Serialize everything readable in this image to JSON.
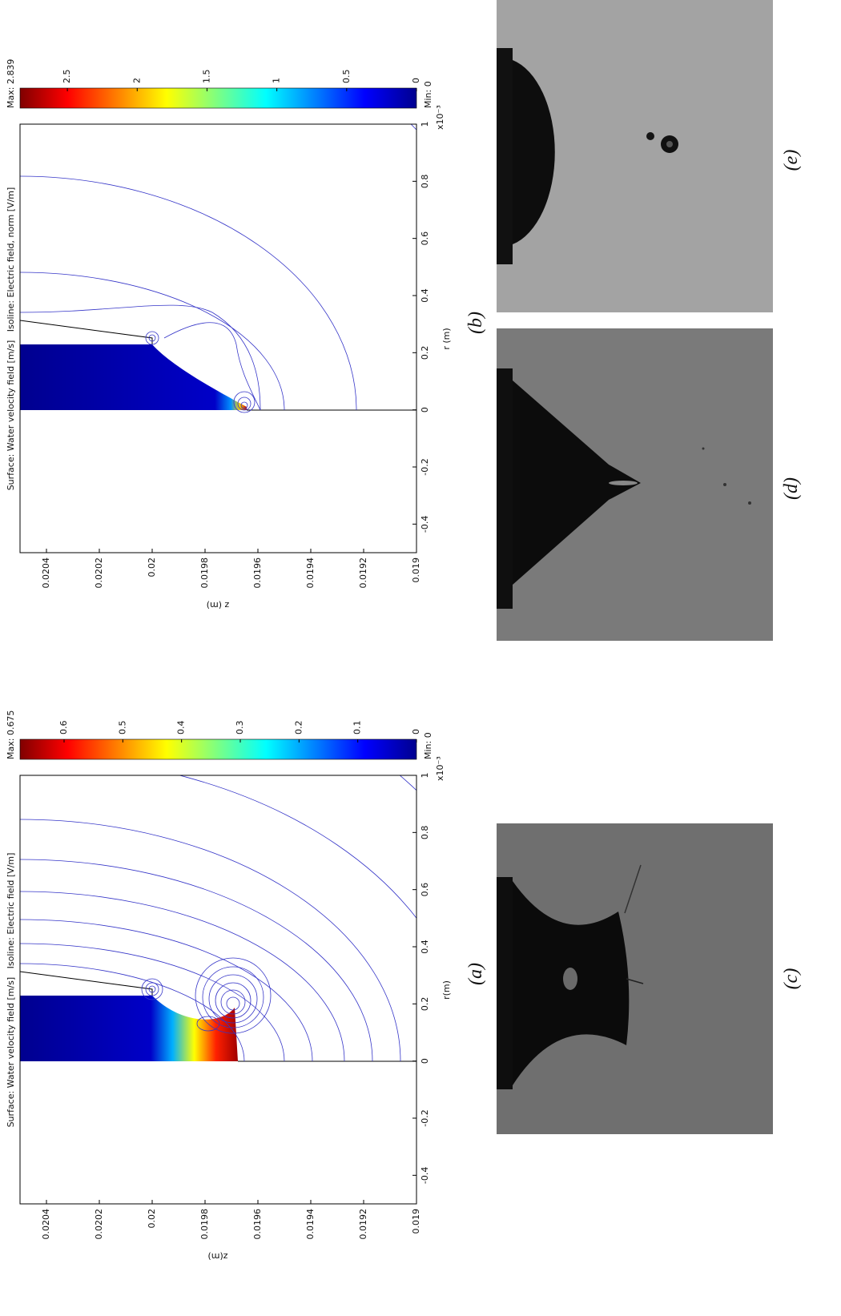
{
  "figure": {
    "plots": [
      {
        "label": "(a)",
        "title": "Surface: Water velocity field [m/s]   Isoline: Electric field [V/m]",
        "xlabel": "r(m)",
        "ylabel": "z(m)",
        "x_multiplier": "x10⁻³",
        "xlim": [
          -0.5,
          1
        ],
        "xticks": [
          -0.4,
          -0.2,
          0,
          0.2,
          0.4,
          0.6,
          0.8,
          1
        ],
        "ylim": [
          0.019,
          0.0205
        ],
        "yticks": [
          0.0204,
          0.0202,
          0.02,
          0.0198,
          0.0196,
          0.0194,
          0.0192,
          0.019
        ],
        "colorbar": {
          "max_label": "Max: 0.675",
          "min_label": "Min: 0",
          "clim": [
            0,
            0.675
          ],
          "ticks": [
            0.6,
            0.5,
            0.4,
            0.3,
            0.2,
            0.1,
            0
          ]
        }
      },
      {
        "label": "(b)",
        "title": "Surface: Water velocity field [m/s]   Isoline: Electric field, norm [V/m]",
        "xlabel": "r (m)",
        "ylabel": "z (m)",
        "x_multiplier": "x10⁻³",
        "xlim": [
          -0.5,
          1
        ],
        "xticks": [
          -0.4,
          -0.2,
          0,
          0.2,
          0.4,
          0.6,
          0.8,
          1
        ],
        "ylim": [
          0.019,
          0.0205
        ],
        "yticks": [
          0.0204,
          0.0202,
          0.02,
          0.0198,
          0.0196,
          0.0194,
          0.0192,
          0.019
        ],
        "colorbar": {
          "max_label": "Max: 2.839",
          "min_label": "Min: 0",
          "clim": [
            0,
            2.839
          ],
          "ticks": [
            2.5,
            2,
            1.5,
            1,
            0.5,
            0
          ]
        }
      }
    ],
    "photos": [
      {
        "label": "(c)"
      },
      {
        "label": "(d)"
      },
      {
        "label": "(e)"
      }
    ]
  }
}
